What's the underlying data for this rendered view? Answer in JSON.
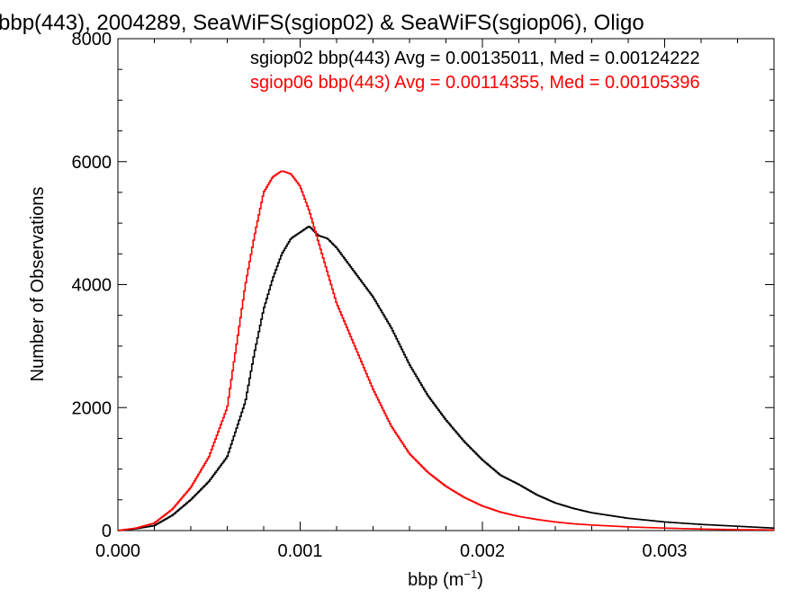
{
  "chart_data": {
    "type": "line",
    "title": "bbp(443), 2004289, SeaWiFS(sgiop02) & SeaWiFS(sgiop06), Oligo",
    "xlabel_main": "bbp (m",
    "xlabel_sup": "−1",
    "xlabel_close": ")",
    "ylabel": "Number of Observations",
    "xlim": [
      0.0,
      0.0036
    ],
    "ylim": [
      0,
      8000
    ],
    "xticks": [
      "0.000",
      "0.001",
      "0.002",
      "0.003"
    ],
    "yticks": [
      "0",
      "2000",
      "4000",
      "6000",
      "8000"
    ],
    "legend": [
      {
        "text": "sgiop02 bbp(443) Avg = 0.00135011, Med = 0.00124222",
        "color": "#000000"
      },
      {
        "text": "sgiop06 bbp(443) Avg = 0.00114355, Med = 0.00105396",
        "color": "#ff0000"
      }
    ],
    "series": [
      {
        "name": "sgiop02",
        "color": "#000000",
        "x": [
          0.0,
          0.0001,
          0.0002,
          0.0003,
          0.0004,
          0.0005,
          0.0006,
          0.0007,
          0.00075,
          0.0008,
          0.00085,
          0.0009,
          0.00095,
          0.001,
          0.00105,
          0.0011,
          0.00115,
          0.0012,
          0.00125,
          0.0013,
          0.0014,
          0.0015,
          0.0016,
          0.0017,
          0.0018,
          0.0019,
          0.002,
          0.0021,
          0.0022,
          0.0023,
          0.0024,
          0.0025,
          0.0026,
          0.0028,
          0.003,
          0.0032,
          0.0034,
          0.0036
        ],
        "y": [
          0,
          30,
          80,
          250,
          500,
          800,
          1200,
          2100,
          2900,
          3600,
          4100,
          4500,
          4750,
          4850,
          4950,
          4800,
          4750,
          4600,
          4400,
          4200,
          3800,
          3300,
          2700,
          2200,
          1800,
          1450,
          1150,
          900,
          750,
          580,
          450,
          360,
          290,
          200,
          140,
          100,
          70,
          40
        ]
      },
      {
        "name": "sgiop06",
        "color": "#ff0000",
        "x": [
          0.0,
          0.0001,
          0.0002,
          0.0003,
          0.0004,
          0.0005,
          0.0006,
          0.00065,
          0.0007,
          0.00075,
          0.0008,
          0.00085,
          0.0009,
          0.00095,
          0.001,
          0.00105,
          0.0011,
          0.00115,
          0.0012,
          0.0013,
          0.0014,
          0.0015,
          0.0016,
          0.0017,
          0.0018,
          0.0019,
          0.002,
          0.0021,
          0.0022,
          0.0023,
          0.0024,
          0.0025,
          0.0026,
          0.0028,
          0.003,
          0.0032,
          0.0034,
          0.0036
        ],
        "y": [
          0,
          40,
          120,
          350,
          700,
          1200,
          2000,
          3000,
          4000,
          4800,
          5500,
          5750,
          5850,
          5800,
          5600,
          5200,
          4700,
          4200,
          3700,
          3000,
          2300,
          1700,
          1250,
          950,
          720,
          540,
          400,
          300,
          230,
          180,
          140,
          110,
          90,
          60,
          40,
          25,
          15,
          10
        ]
      }
    ]
  }
}
